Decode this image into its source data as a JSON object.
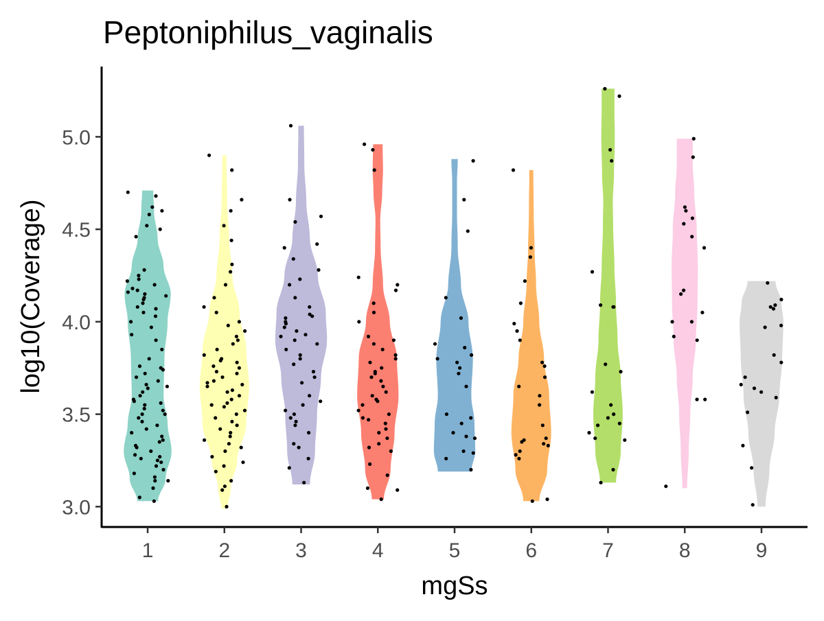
{
  "chart_data": {
    "type": "violin",
    "title": "Peptoniphilus_vaginalis",
    "xlabel": "mgSs",
    "ylabel": "log10(Coverage)",
    "categories": [
      "1",
      "2",
      "3",
      "4",
      "5",
      "6",
      "7",
      "8",
      "9"
    ],
    "ylim": [
      2.89,
      5.38
    ],
    "yticks": [
      "3.0",
      "3.5",
      "4.0",
      "4.5",
      "5.0"
    ],
    "grid": false,
    "legend": "none",
    "colors": [
      "#8DD3C7",
      "#FFFFB3",
      "#BEBADA",
      "#FB8072",
      "#80B1D3",
      "#FDB462",
      "#B3DE69",
      "#FCCDE5",
      "#D9D9D9"
    ],
    "point_color": "#000000",
    "groups": [
      {
        "name": "1",
        "min": 3.03,
        "max": 4.71,
        "density": [
          [
            3.03,
            0.26
          ],
          [
            3.15,
            0.45
          ],
          [
            3.3,
            0.6
          ],
          [
            3.45,
            0.5
          ],
          [
            3.6,
            0.4
          ],
          [
            3.8,
            0.42
          ],
          [
            4.0,
            0.5
          ],
          [
            4.15,
            0.58
          ],
          [
            4.3,
            0.4
          ],
          [
            4.45,
            0.25
          ],
          [
            4.6,
            0.16
          ],
          [
            4.71,
            0.14
          ]
        ],
        "points": [
          3.03,
          3.05,
          3.1,
          3.14,
          3.14,
          3.16,
          3.18,
          3.2,
          3.22,
          3.24,
          3.25,
          3.26,
          3.27,
          3.28,
          3.3,
          3.32,
          3.33,
          3.35,
          3.36,
          3.38,
          3.4,
          3.42,
          3.44,
          3.46,
          3.48,
          3.5,
          3.5,
          3.52,
          3.53,
          3.55,
          3.56,
          3.57,
          3.58,
          3.6,
          3.62,
          3.64,
          3.65,
          3.66,
          3.68,
          3.7,
          3.72,
          3.74,
          3.75,
          3.76,
          3.8,
          3.85,
          3.9,
          3.93,
          3.97,
          4.0,
          4.03,
          4.05,
          4.07,
          4.08,
          4.1,
          4.12,
          4.13,
          4.14,
          4.15,
          4.16,
          4.17,
          4.18,
          4.2,
          4.22,
          4.23,
          4.25,
          4.28,
          4.46,
          4.5,
          4.52,
          4.58,
          4.6,
          4.62,
          4.68,
          4.7
        ]
      },
      {
        "name": "2",
        "min": 2.99,
        "max": 4.9,
        "density": [
          [
            2.99,
            0.08
          ],
          [
            3.1,
            0.16
          ],
          [
            3.25,
            0.32
          ],
          [
            3.45,
            0.55
          ],
          [
            3.65,
            0.62
          ],
          [
            3.85,
            0.55
          ],
          [
            4.05,
            0.38
          ],
          [
            4.25,
            0.2
          ],
          [
            4.45,
            0.12
          ],
          [
            4.65,
            0.07
          ],
          [
            4.9,
            0.05
          ]
        ],
        "points": [
          3.0,
          3.09,
          3.11,
          3.14,
          3.19,
          3.22,
          3.24,
          3.27,
          3.3,
          3.32,
          3.34,
          3.36,
          3.38,
          3.4,
          3.42,
          3.44,
          3.46,
          3.48,
          3.5,
          3.52,
          3.54,
          3.55,
          3.56,
          3.58,
          3.6,
          3.62,
          3.63,
          3.65,
          3.66,
          3.67,
          3.68,
          3.7,
          3.72,
          3.73,
          3.75,
          3.76,
          3.78,
          3.79,
          3.8,
          3.82,
          3.85,
          3.88,
          3.9,
          3.92,
          3.95,
          3.98,
          4.0,
          4.05,
          4.08,
          4.13,
          4.2,
          4.27,
          4.31,
          4.44,
          4.52,
          4.6,
          4.66,
          4.82,
          4.9
        ]
      },
      {
        "name": "3",
        "min": 3.12,
        "max": 5.06,
        "density": [
          [
            3.12,
            0.22
          ],
          [
            3.3,
            0.35
          ],
          [
            3.5,
            0.4
          ],
          [
            3.7,
            0.5
          ],
          [
            3.9,
            0.65
          ],
          [
            4.05,
            0.62
          ],
          [
            4.25,
            0.42
          ],
          [
            4.45,
            0.22
          ],
          [
            4.65,
            0.13
          ],
          [
            4.85,
            0.08
          ],
          [
            5.06,
            0.07
          ]
        ],
        "points": [
          3.13,
          3.21,
          3.26,
          3.32,
          3.34,
          3.4,
          3.44,
          3.46,
          3.48,
          3.5,
          3.52,
          3.55,
          3.57,
          3.6,
          3.67,
          3.7,
          3.73,
          3.77,
          3.8,
          3.82,
          3.85,
          3.88,
          3.9,
          3.92,
          3.93,
          3.95,
          3.97,
          3.99,
          4.0,
          4.02,
          4.03,
          4.04,
          4.08,
          4.13,
          4.2,
          4.23,
          4.28,
          4.34,
          4.4,
          4.42,
          4.54,
          4.57,
          4.66,
          5.06
        ]
      },
      {
        "name": "4",
        "min": 3.04,
        "max": 4.96,
        "density": [
          [
            3.04,
            0.15
          ],
          [
            3.2,
            0.32
          ],
          [
            3.4,
            0.42
          ],
          [
            3.6,
            0.52
          ],
          [
            3.8,
            0.48
          ],
          [
            4.0,
            0.3
          ],
          [
            4.2,
            0.13
          ],
          [
            4.4,
            0.07
          ],
          [
            4.55,
            0.06
          ],
          [
            4.7,
            0.11
          ],
          [
            4.82,
            0.13
          ],
          [
            4.96,
            0.12
          ]
        ],
        "points": [
          3.04,
          3.09,
          3.1,
          3.17,
          3.23,
          3.3,
          3.32,
          3.34,
          3.37,
          3.4,
          3.42,
          3.45,
          3.47,
          3.48,
          3.5,
          3.52,
          3.55,
          3.57,
          3.58,
          3.6,
          3.62,
          3.65,
          3.68,
          3.7,
          3.72,
          3.73,
          3.75,
          3.78,
          3.8,
          3.82,
          3.85,
          3.88,
          3.9,
          3.92,
          4.0,
          4.05,
          4.1,
          4.17,
          4.2,
          4.24,
          4.82,
          4.93,
          4.96
        ]
      },
      {
        "name": "5",
        "min": 3.19,
        "max": 4.88,
        "density": [
          [
            3.19,
            0.42
          ],
          [
            3.3,
            0.52
          ],
          [
            3.45,
            0.5
          ],
          [
            3.6,
            0.42
          ],
          [
            3.8,
            0.46
          ],
          [
            4.0,
            0.35
          ],
          [
            4.2,
            0.16
          ],
          [
            4.4,
            0.08
          ],
          [
            4.6,
            0.06
          ],
          [
            4.75,
            0.06
          ],
          [
            4.88,
            0.08
          ]
        ],
        "points": [
          3.2,
          3.26,
          3.29,
          3.3,
          3.37,
          3.38,
          3.4,
          3.45,
          3.48,
          3.5,
          3.65,
          3.72,
          3.75,
          3.78,
          3.8,
          3.82,
          3.86,
          3.88,
          4.02,
          4.13,
          4.49,
          4.66,
          4.87
        ]
      },
      {
        "name": "6",
        "min": 3.03,
        "max": 4.82,
        "density": [
          [
            3.03,
            0.2
          ],
          [
            3.2,
            0.4
          ],
          [
            3.4,
            0.5
          ],
          [
            3.6,
            0.45
          ],
          [
            3.8,
            0.32
          ],
          [
            4.0,
            0.2
          ],
          [
            4.2,
            0.12
          ],
          [
            4.4,
            0.08
          ],
          [
            4.6,
            0.06
          ],
          [
            4.82,
            0.05
          ]
        ],
        "points": [
          3.03,
          3.04,
          3.26,
          3.28,
          3.3,
          3.33,
          3.34,
          3.35,
          3.36,
          3.37,
          3.44,
          3.55,
          3.6,
          3.65,
          3.7,
          3.76,
          3.78,
          3.9,
          3.95,
          3.99,
          4.1,
          4.22,
          4.35,
          4.4,
          4.82
        ]
      },
      {
        "name": "7",
        "min": 3.13,
        "max": 5.26,
        "density": [
          [
            3.13,
            0.2
          ],
          [
            3.3,
            0.32
          ],
          [
            3.5,
            0.37
          ],
          [
            3.7,
            0.32
          ],
          [
            3.9,
            0.24
          ],
          [
            4.1,
            0.2
          ],
          [
            4.3,
            0.16
          ],
          [
            4.5,
            0.13
          ],
          [
            4.65,
            0.12
          ],
          [
            4.8,
            0.15
          ],
          [
            5.0,
            0.17
          ],
          [
            5.15,
            0.16
          ],
          [
            5.26,
            0.16
          ]
        ],
        "points": [
          3.13,
          3.2,
          3.36,
          3.37,
          3.4,
          3.44,
          3.45,
          3.48,
          3.5,
          3.55,
          3.62,
          3.73,
          3.77,
          4.08,
          4.08,
          4.09,
          4.27,
          4.87,
          4.93,
          5.22,
          5.26
        ]
      },
      {
        "name": "8",
        "min": 3.1,
        "max": 4.99,
        "density": [
          [
            3.1,
            0.06
          ],
          [
            3.3,
            0.1
          ],
          [
            3.5,
            0.14
          ],
          [
            3.7,
            0.2
          ],
          [
            3.9,
            0.28
          ],
          [
            4.1,
            0.32
          ],
          [
            4.3,
            0.33
          ],
          [
            4.5,
            0.3
          ],
          [
            4.7,
            0.24
          ],
          [
            4.85,
            0.2
          ],
          [
            4.99,
            0.2
          ]
        ],
        "points": [
          3.11,
          3.58,
          3.58,
          3.9,
          3.92,
          4.0,
          4.0,
          4.05,
          4.15,
          4.17,
          4.4,
          4.46,
          4.53,
          4.56,
          4.6,
          4.62,
          4.89,
          4.99
        ]
      },
      {
        "name": "9",
        "min": 3.0,
        "max": 4.22,
        "density": [
          [
            3.0,
            0.1
          ],
          [
            3.2,
            0.2
          ],
          [
            3.4,
            0.33
          ],
          [
            3.6,
            0.45
          ],
          [
            3.8,
            0.52
          ],
          [
            4.0,
            0.55
          ],
          [
            4.1,
            0.5
          ],
          [
            4.22,
            0.35
          ]
        ],
        "points": [
          3.01,
          3.21,
          3.33,
          3.51,
          3.59,
          3.62,
          3.64,
          3.66,
          3.7,
          3.78,
          3.82,
          3.97,
          3.98,
          4.07,
          4.08,
          4.09,
          4.12,
          4.21
        ]
      }
    ]
  }
}
